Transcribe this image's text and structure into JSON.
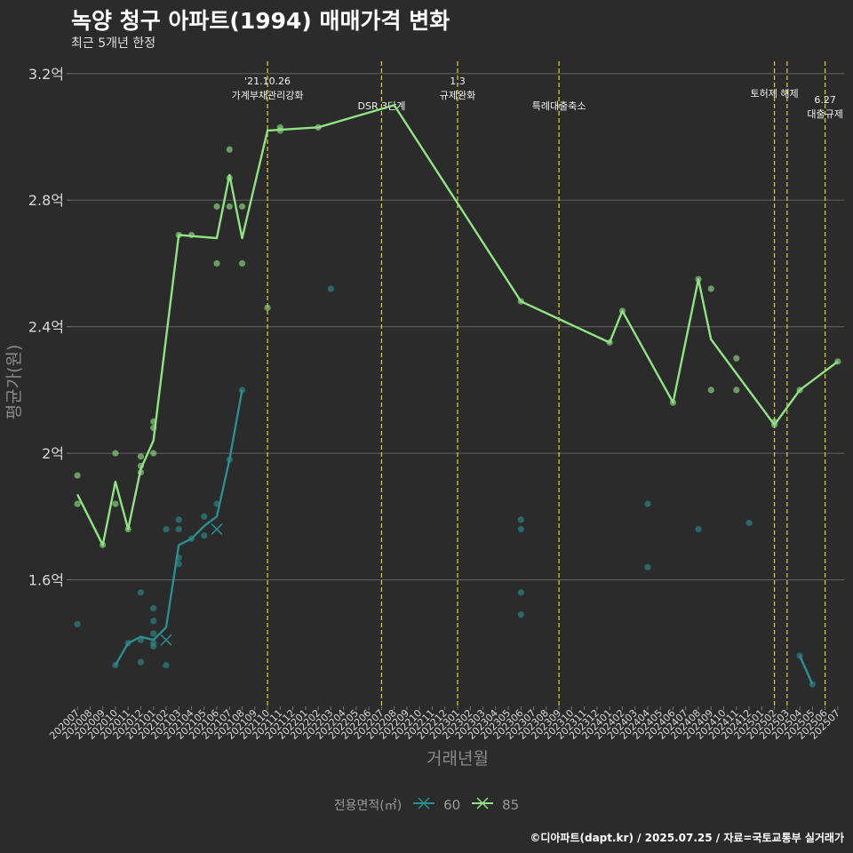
{
  "header": {
    "title": "녹양 청구 아파트(1994) 매매가격 변화",
    "subtitle": "최근 5개년 한정",
    "caption": "©디아파트(dapt.kr) / 2025.07.25 / 자료=국토교통부 실거래가"
  },
  "legend": {
    "title": "전용면적(㎡)"
  },
  "chart_data": {
    "type": "line",
    "title": "녹양 청구 아파트(1994) 매매가격 변화",
    "subtitle": "최근 5개년 한정",
    "xlabel": "거래년월",
    "ylabel": "평균가(원)",
    "x": [
      "202007",
      "202008",
      "202009",
      "202010",
      "202011",
      "202012",
      "202101",
      "202102",
      "202103",
      "202104",
      "202105",
      "202106",
      "202107",
      "202108",
      "202109",
      "202110",
      "202111",
      "202112",
      "202201",
      "202202",
      "202203",
      "202204",
      "202205",
      "202206",
      "202207",
      "202208",
      "202209",
      "202210",
      "202211",
      "202212",
      "202301",
      "202302",
      "202303",
      "202304",
      "202305",
      "202306",
      "202307",
      "202308",
      "202309",
      "202310",
      "202311",
      "202312",
      "202401",
      "202402",
      "202403",
      "202404",
      "202405",
      "202406",
      "202407",
      "202408",
      "202409",
      "202410",
      "202411",
      "202412",
      "202501",
      "202502",
      "202503",
      "202504",
      "202505",
      "202506",
      "202507"
    ],
    "ylim": [
      1.2,
      3.25
    ],
    "yticks": [
      1.6,
      2.0,
      2.4,
      2.8,
      3.2
    ],
    "ytick_labels": [
      "1.6억",
      "2억",
      "2.4억",
      "2.8억",
      "3.2억"
    ],
    "grid": true,
    "series": [
      {
        "name": "60",
        "color": "#2a8f8e",
        "line": [
          [
            "202010",
            1.33
          ],
          [
            "202011",
            1.4
          ],
          [
            "202012",
            1.42
          ],
          [
            "202101",
            1.41
          ],
          [
            "202102",
            1.45
          ],
          [
            "202103",
            1.71
          ],
          [
            "202104",
            1.73
          ],
          [
            "202105",
            1.77
          ],
          [
            "202106",
            1.8
          ],
          [
            "202107",
            1.98
          ],
          [
            "202108",
            2.2
          ]
        ],
        "line2": [
          [
            "202504",
            1.36
          ],
          [
            "202505",
            1.27
          ]
        ],
        "points": [
          [
            "202007",
            1.46
          ],
          [
            "202010",
            1.33
          ],
          [
            "202011",
            1.4
          ],
          [
            "202012",
            1.41
          ],
          [
            "202012",
            1.56
          ],
          [
            "202012",
            1.34
          ],
          [
            "202101",
            1.51
          ],
          [
            "202101",
            1.47
          ],
          [
            "202101",
            1.43
          ],
          [
            "202101",
            1.4
          ],
          [
            "202101",
            1.39
          ],
          [
            "202102",
            1.33
          ],
          [
            "202102",
            1.76
          ],
          [
            "202103",
            1.65
          ],
          [
            "202103",
            1.67
          ],
          [
            "202103",
            1.76
          ],
          [
            "202103",
            1.79
          ],
          [
            "202104",
            1.73
          ],
          [
            "202105",
            1.74
          ],
          [
            "202105",
            1.8
          ],
          [
            "202106",
            1.84
          ],
          [
            "202107",
            1.98
          ],
          [
            "202108",
            2.2
          ],
          [
            "202203",
            2.52
          ],
          [
            "202306",
            1.79
          ],
          [
            "202306",
            1.76
          ],
          [
            "202306",
            1.56
          ],
          [
            "202306",
            1.49
          ],
          [
            "202404",
            1.84
          ],
          [
            "202404",
            1.64
          ],
          [
            "202408",
            1.76
          ],
          [
            "202412",
            1.78
          ],
          [
            "202504",
            1.36
          ],
          [
            "202505",
            1.27
          ]
        ],
        "crosses": [
          [
            "202102",
            1.41
          ],
          [
            "202106",
            1.76
          ]
        ]
      },
      {
        "name": "85",
        "color": "#8fe383",
        "line": [
          [
            "202007",
            1.87
          ],
          [
            "202009",
            1.71
          ],
          [
            "202010",
            1.91
          ],
          [
            "202011",
            1.76
          ],
          [
            "202012",
            1.95
          ],
          [
            "202101",
            2.04
          ],
          [
            "202103",
            2.69
          ],
          [
            "202106",
            2.68
          ],
          [
            "202107",
            2.88
          ],
          [
            "202108",
            2.68
          ],
          [
            "202110",
            3.02
          ],
          [
            "202202",
            3.03
          ],
          [
            "202208",
            3.1
          ],
          [
            "202306",
            2.48
          ],
          [
            "202401",
            2.35
          ],
          [
            "202402",
            2.45
          ],
          [
            "202406",
            2.16
          ],
          [
            "202408",
            2.55
          ],
          [
            "202409",
            2.36
          ],
          [
            "202502",
            2.09
          ],
          [
            "202504",
            2.2
          ],
          [
            "202507",
            2.29
          ]
        ],
        "points": [
          [
            "202007",
            1.93
          ],
          [
            "202007",
            1.84
          ],
          [
            "202009",
            1.71
          ],
          [
            "202010",
            2.0
          ],
          [
            "202010",
            1.84
          ],
          [
            "202011",
            1.76
          ],
          [
            "202012",
            1.99
          ],
          [
            "202012",
            1.96
          ],
          [
            "202012",
            1.94
          ],
          [
            "202101",
            2.1
          ],
          [
            "202101",
            2.08
          ],
          [
            "202101",
            2.0
          ],
          [
            "202103",
            2.69
          ],
          [
            "202104",
            2.69
          ],
          [
            "202106",
            2.78
          ],
          [
            "202106",
            2.6
          ],
          [
            "202107",
            2.96
          ],
          [
            "202107",
            2.87
          ],
          [
            "202107",
            2.78
          ],
          [
            "202108",
            2.78
          ],
          [
            "202108",
            2.6
          ],
          [
            "202110",
            2.46
          ],
          [
            "202111",
            3.02
          ],
          [
            "202111",
            3.03
          ],
          [
            "202202",
            3.03
          ],
          [
            "202306",
            2.48
          ],
          [
            "202401",
            2.35
          ],
          [
            "202402",
            2.45
          ],
          [
            "202406",
            2.16
          ],
          [
            "202408",
            2.55
          ],
          [
            "202409",
            2.52
          ],
          [
            "202409",
            2.2
          ],
          [
            "202411",
            2.3
          ],
          [
            "202411",
            2.2
          ],
          [
            "202502",
            2.09
          ],
          [
            "202502",
            2.1
          ],
          [
            "202504",
            2.2
          ],
          [
            "202507",
            2.29
          ]
        ]
      }
    ],
    "annotations": [
      {
        "x": "202110",
        "lines": [
          "'21.10.26",
          "가계부채관리강화"
        ],
        "row": 0
      },
      {
        "x": "202207",
        "lines": [
          "DSR 3단계"
        ],
        "row": 2
      },
      {
        "x": "202301",
        "lines": [
          "1.3",
          "규제완화"
        ],
        "row": 0
      },
      {
        "x": "202309",
        "lines": [
          "특례대출축소"
        ],
        "row": 2
      },
      {
        "x": "202502",
        "lines": [
          "토허제 해제"
        ],
        "row": 1
      },
      {
        "x": "202503",
        "lines": [],
        "row": 1
      },
      {
        "x": "202506",
        "lines": [
          "6.27",
          "대출규제"
        ],
        "row": 1.5
      }
    ]
  }
}
